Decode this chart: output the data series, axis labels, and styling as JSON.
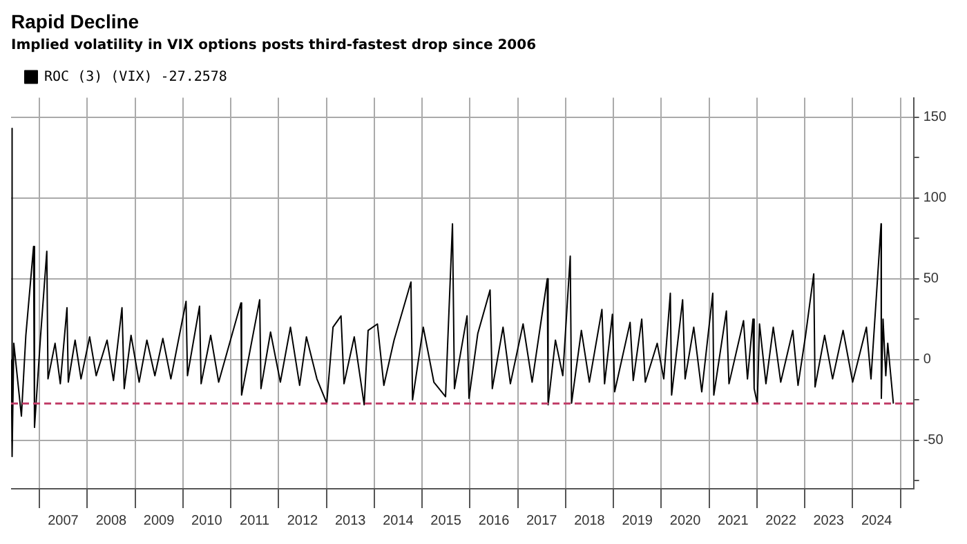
{
  "chart_data": {
    "type": "line",
    "title": "Rapid Decline",
    "subtitle": "Implied volatility in VIX options posts third-fastest drop since 2006",
    "series": [
      {
        "name": "ROC (3) (VIX) -27.2578",
        "color": "#000000",
        "x": [
          "2006-06-01",
          "2006-06-05",
          "2006-06-09",
          "2006-06-20",
          "2006-08-17",
          "2006-09-20",
          "2006-11-18",
          "2006-11-25",
          "2007-01-10",
          "2007-02-27",
          "2007-03-08",
          "2007-05-01",
          "2007-06-10",
          "2007-07-31",
          "2007-08-10",
          "2007-10-01",
          "2007-11-15",
          "2008-01-20",
          "2008-03-10",
          "2008-06-01",
          "2008-07-20",
          "2008-09-23",
          "2008-10-10",
          "2008-12-01",
          "2009-02-01",
          "2009-04-01",
          "2009-06-01",
          "2009-08-01",
          "2009-10-01",
          "2010-01-25",
          "2010-02-05",
          "2010-05-08",
          "2010-05-20",
          "2010-08-01",
          "2010-10-01",
          "2011-03-20",
          "2011-03-25",
          "2011-08-10",
          "2011-08-20",
          "2011-11-01",
          "2012-01-15",
          "2012-04-01",
          "2012-06-10",
          "2012-08-01",
          "2012-10-20",
          "2013-01-03",
          "2013-02-20",
          "2013-04-22",
          "2013-05-15",
          "2013-08-01",
          "2013-10-16",
          "2013-11-15",
          "2014-01-25",
          "2014-03-15",
          "2014-06-01",
          "2014-10-08",
          "2014-10-20",
          "2015-01-10",
          "2015-04-01",
          "2015-06-29",
          "2015-08-21",
          "2015-09-05",
          "2015-12-10",
          "2015-12-25",
          "2016-03-01",
          "2016-06-03",
          "2016-06-20",
          "2016-09-10",
          "2016-11-05",
          "2017-02-10",
          "2017-04-20",
          "2017-08-14",
          "2017-08-20",
          "2017-10-15",
          "2017-12-10",
          "2018-02-05",
          "2018-02-15",
          "2018-05-01",
          "2018-07-01",
          "2018-10-05",
          "2018-10-25",
          "2018-12-24",
          "2019-01-10",
          "2019-05-08",
          "2019-06-01",
          "2019-08-05",
          "2019-09-01",
          "2019-12-01",
          "2020-01-20",
          "2020-03-10",
          "2020-03-20",
          "2020-06-12",
          "2020-07-01",
          "2020-09-05",
          "2020-11-05",
          "2021-01-28",
          "2021-02-05",
          "2021-05-12",
          "2021-06-01",
          "2021-09-20",
          "2021-10-20",
          "2021-12-01",
          "2021-12-10",
          "2022-01-03",
          "2022-01-20",
          "2022-03-10",
          "2022-05-05",
          "2022-07-01",
          "2022-10-01",
          "2022-11-10",
          "2023-01-05",
          "2023-03-10",
          "2023-03-20",
          "2023-06-01",
          "2023-08-01",
          "2023-10-20",
          "2024-01-01",
          "2024-04-15",
          "2024-05-20",
          "2024-08-05",
          "2024-08-07",
          "2024-08-20",
          "2024-09-10",
          "2024-09-25",
          "2024-11-07"
        ],
        "values": [
          0,
          143,
          -60,
          10,
          -35,
          15,
          70,
          -42,
          14,
          67,
          -12,
          10,
          -15,
          32,
          -14,
          12,
          -12,
          14,
          -10,
          12,
          -13,
          32,
          -18,
          15,
          -14,
          12,
          -10,
          13,
          -12,
          36,
          -10,
          33,
          -15,
          15,
          -14,
          35,
          -22,
          37,
          -18,
          17,
          -14,
          20,
          -16,
          14,
          -12,
          -27,
          20,
          27,
          -15,
          14,
          -28,
          18,
          22,
          -16,
          12,
          48,
          -25,
          20,
          -14,
          -23,
          84,
          -18,
          27,
          -24,
          16,
          43,
          -18,
          20,
          -15,
          22,
          -14,
          50,
          -28,
          12,
          -10,
          64,
          -27,
          18,
          -14,
          31,
          -15,
          28,
          -20,
          23,
          -13,
          25,
          -14,
          10,
          -12,
          41,
          -22,
          37,
          -12,
          20,
          -20,
          41,
          -22,
          30,
          -15,
          24,
          -12,
          25,
          -18,
          -27,
          22,
          -15,
          20,
          -14,
          18,
          -16,
          14,
          53,
          -17,
          15,
          -12,
          18,
          -14,
          20,
          -12,
          84,
          -24,
          25,
          -10,
          10,
          -27.2578
        ]
      }
    ],
    "xlim": [
      "2006-05-30",
      "2025-04-10"
    ],
    "xticks": [
      {
        "value": "2007-01-01",
        "label": null
      },
      {
        "value": "2007-07-02",
        "label": "2007"
      },
      {
        "value": "2008-01-01",
        "label": null
      },
      {
        "value": "2008-07-02",
        "label": "2008"
      },
      {
        "value": "2009-01-01",
        "label": null
      },
      {
        "value": "2009-07-02",
        "label": "2009"
      },
      {
        "value": "2010-01-01",
        "label": null
      },
      {
        "value": "2010-07-02",
        "label": "2010"
      },
      {
        "value": "2011-01-01",
        "label": null
      },
      {
        "value": "2011-07-02",
        "label": "2011"
      },
      {
        "value": "2012-01-01",
        "label": null
      },
      {
        "value": "2012-07-02",
        "label": "2012"
      },
      {
        "value": "2013-01-01",
        "label": null
      },
      {
        "value": "2013-07-02",
        "label": "2013"
      },
      {
        "value": "2014-01-01",
        "label": null
      },
      {
        "value": "2014-07-02",
        "label": "2014"
      },
      {
        "value": "2015-01-01",
        "label": null
      },
      {
        "value": "2015-07-02",
        "label": "2015"
      },
      {
        "value": "2016-01-01",
        "label": null
      },
      {
        "value": "2016-07-02",
        "label": "2016"
      },
      {
        "value": "2017-01-01",
        "label": null
      },
      {
        "value": "2017-07-02",
        "label": "2017"
      },
      {
        "value": "2018-01-01",
        "label": null
      },
      {
        "value": "2018-07-02",
        "label": "2018"
      },
      {
        "value": "2019-01-01",
        "label": null
      },
      {
        "value": "2019-07-02",
        "label": "2019"
      },
      {
        "value": "2020-01-01",
        "label": null
      },
      {
        "value": "2020-07-02",
        "label": "2020"
      },
      {
        "value": "2021-01-01",
        "label": null
      },
      {
        "value": "2021-07-02",
        "label": "2021"
      },
      {
        "value": "2022-01-01",
        "label": null
      },
      {
        "value": "2022-07-02",
        "label": "2022"
      },
      {
        "value": "2023-01-01",
        "label": null
      },
      {
        "value": "2023-07-02",
        "label": "2023"
      },
      {
        "value": "2024-01-01",
        "label": null
      },
      {
        "value": "2024-07-02",
        "label": "2024"
      },
      {
        "value": "2025-01-01",
        "label": null
      }
    ],
    "ylim": [
      -80,
      162
    ],
    "yticks": [
      {
        "value": -75,
        "label": null
      },
      -50,
      {
        "value": -25,
        "label": null
      },
      0,
      {
        "value": 25,
        "label": null
      },
      50,
      {
        "value": 75,
        "label": null
      },
      100,
      {
        "value": 125,
        "label": null
      },
      150
    ],
    "ref_lines": [
      {
        "axis": "y",
        "value": -27.2578,
        "color": "#c2416b",
        "line_style": "dashed"
      }
    ],
    "grid": true,
    "legend": "top left"
  }
}
